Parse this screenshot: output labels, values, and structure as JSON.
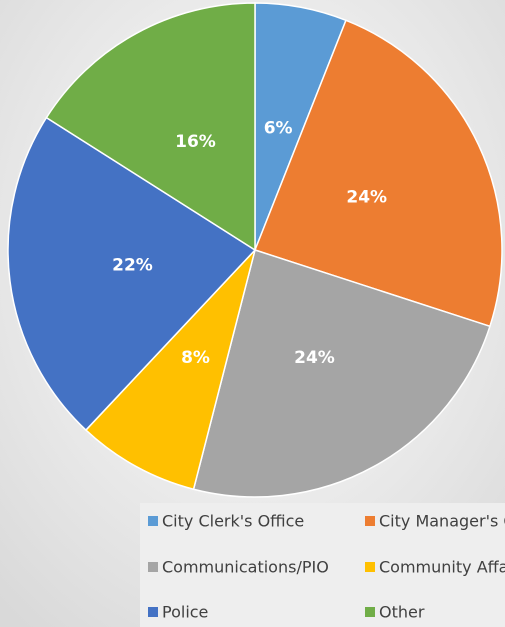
{
  "chart_data": {
    "type": "pie",
    "categories": [
      "City Clerk's Office",
      "City Manager's Office",
      "Communications/PIO",
      "Community Affairs",
      "Police",
      "Other"
    ],
    "values": [
      6,
      24,
      24,
      8,
      22,
      16
    ],
    "value_labels": [
      "6%",
      "24%",
      "24%",
      "8%",
      "22%",
      "16%"
    ],
    "colors": [
      "#5b9bd5",
      "#ed7d31",
      "#a5a5a5",
      "#ffc000",
      "#4472c4",
      "#70ad47"
    ],
    "legend": "bottom"
  }
}
